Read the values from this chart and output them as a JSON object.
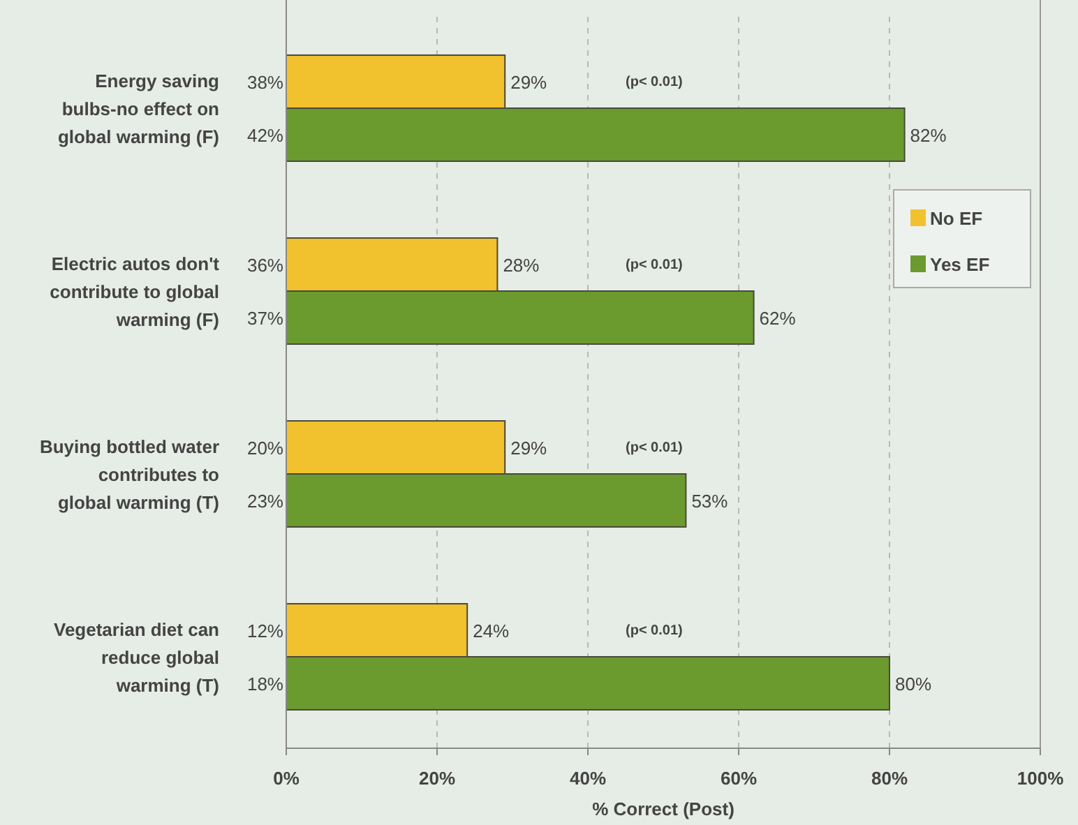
{
  "chart_data": {
    "type": "bar",
    "orientation": "horizontal",
    "categories": [
      "Energy saving bulbs-no effect on global warming (F)",
      "Electric autos don't contribute to global warming (F)",
      "Buying bottled water contributes to global warming (T)",
      "Vegetarian diet can reduce global warming (T)"
    ],
    "series": [
      {
        "name": "No EF",
        "color": "#f2c12e",
        "values": [
          29,
          28,
          29,
          24
        ],
        "value_labels": [
          "29%",
          "28%",
          "29%",
          "24%"
        ]
      },
      {
        "name": "Yes EF",
        "color": "#6b9a2f",
        "values": [
          82,
          62,
          53,
          80
        ],
        "value_labels": [
          "82%",
          "62%",
          "53%",
          "80%"
        ]
      }
    ],
    "xlim": [
      0,
      100
    ],
    "xticks": [
      {
        "value": 0,
        "label": "0%"
      },
      {
        "value": 20,
        "label": "20%"
      },
      {
        "value": 40,
        "label": "40%"
      },
      {
        "value": 60,
        "label": "60%"
      },
      {
        "value": 80,
        "label": "80%"
      },
      {
        "value": 100,
        "label": "100%"
      }
    ],
    "xlabel": "% Correct (Post)",
    "grid": "x",
    "legend": "right",
    "annotations": [
      "38%",
      "42%",
      "36%",
      "37%",
      "20%",
      "23%",
      "12%",
      "18%",
      "(p< 0.01)",
      "(p< 0.01)",
      "(p< 0.01)",
      "(p< 0.01)"
    ]
  }
}
